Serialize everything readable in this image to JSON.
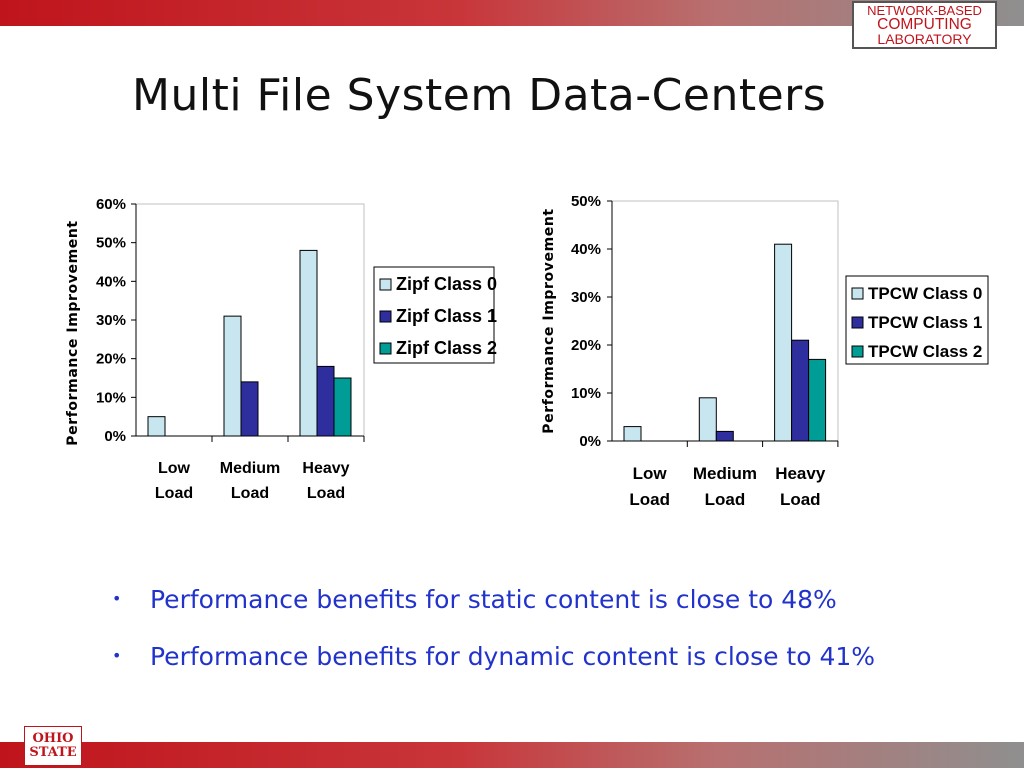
{
  "header": {
    "lab_logo": {
      "line1": "NETWORK-BASED",
      "line2": "COMPUTING",
      "line3": "LABORATORY"
    },
    "title": "Multi File System Data-Centers",
    "band_color": "#c0141c"
  },
  "chart_data": [
    {
      "type": "bar",
      "ylabel": "Performance Improvement",
      "xlabel": "",
      "categories": [
        "Low Load",
        "Medium Load",
        "Heavy Load"
      ],
      "category_lines": [
        [
          "Low",
          "Load"
        ],
        [
          "Medium",
          "Load"
        ],
        [
          "Heavy",
          "Load"
        ]
      ],
      "ylim": [
        0,
        60
      ],
      "yticks": [
        0,
        10,
        20,
        30,
        40,
        50,
        60
      ],
      "ytick_labels": [
        "0%",
        "10%",
        "20%",
        "30%",
        "40%",
        "50%",
        "60%"
      ],
      "legend_position": "right",
      "grid": false,
      "series": [
        {
          "name": "Zipf Class 0",
          "color": "#c8e6ef",
          "values": [
            5,
            31,
            48
          ]
        },
        {
          "name": "Zipf Class 1",
          "color": "#2e2e9e",
          "values": [
            0,
            14,
            18
          ]
        },
        {
          "name": "Zipf Class 2",
          "color": "#009c96",
          "values": [
            0,
            0,
            15
          ]
        }
      ]
    },
    {
      "type": "bar",
      "ylabel": "Performance Improvement",
      "xlabel": "",
      "categories": [
        "Low Load",
        "Medium Load",
        "Heavy Load"
      ],
      "category_lines": [
        [
          "Low",
          "Load"
        ],
        [
          "Medium",
          "Load"
        ],
        [
          "Heavy",
          "Load"
        ]
      ],
      "ylim": [
        0,
        50
      ],
      "yticks": [
        0,
        10,
        20,
        30,
        40,
        50
      ],
      "ytick_labels": [
        "0%",
        "10%",
        "20%",
        "30%",
        "40%",
        "50%"
      ],
      "legend_position": "right",
      "grid": false,
      "series": [
        {
          "name": "TPCW Class 0",
          "color": "#c8e6ef",
          "values": [
            3,
            9,
            41
          ]
        },
        {
          "name": "TPCW Class 1",
          "color": "#2e2e9e",
          "values": [
            0,
            2,
            21
          ]
        },
        {
          "name": "TPCW Class 2",
          "color": "#009c96",
          "values": [
            0,
            0,
            17
          ]
        }
      ]
    }
  ],
  "bullets": [
    {
      "marker": "•",
      "text": "Performance benefits for static content is close to 48%"
    },
    {
      "marker": "•",
      "text": "Performance benefits for dynamic content is close to 41%"
    }
  ],
  "footer": {
    "ohio_logo": {
      "line1": "OHIO",
      "line2": "STATE"
    }
  }
}
